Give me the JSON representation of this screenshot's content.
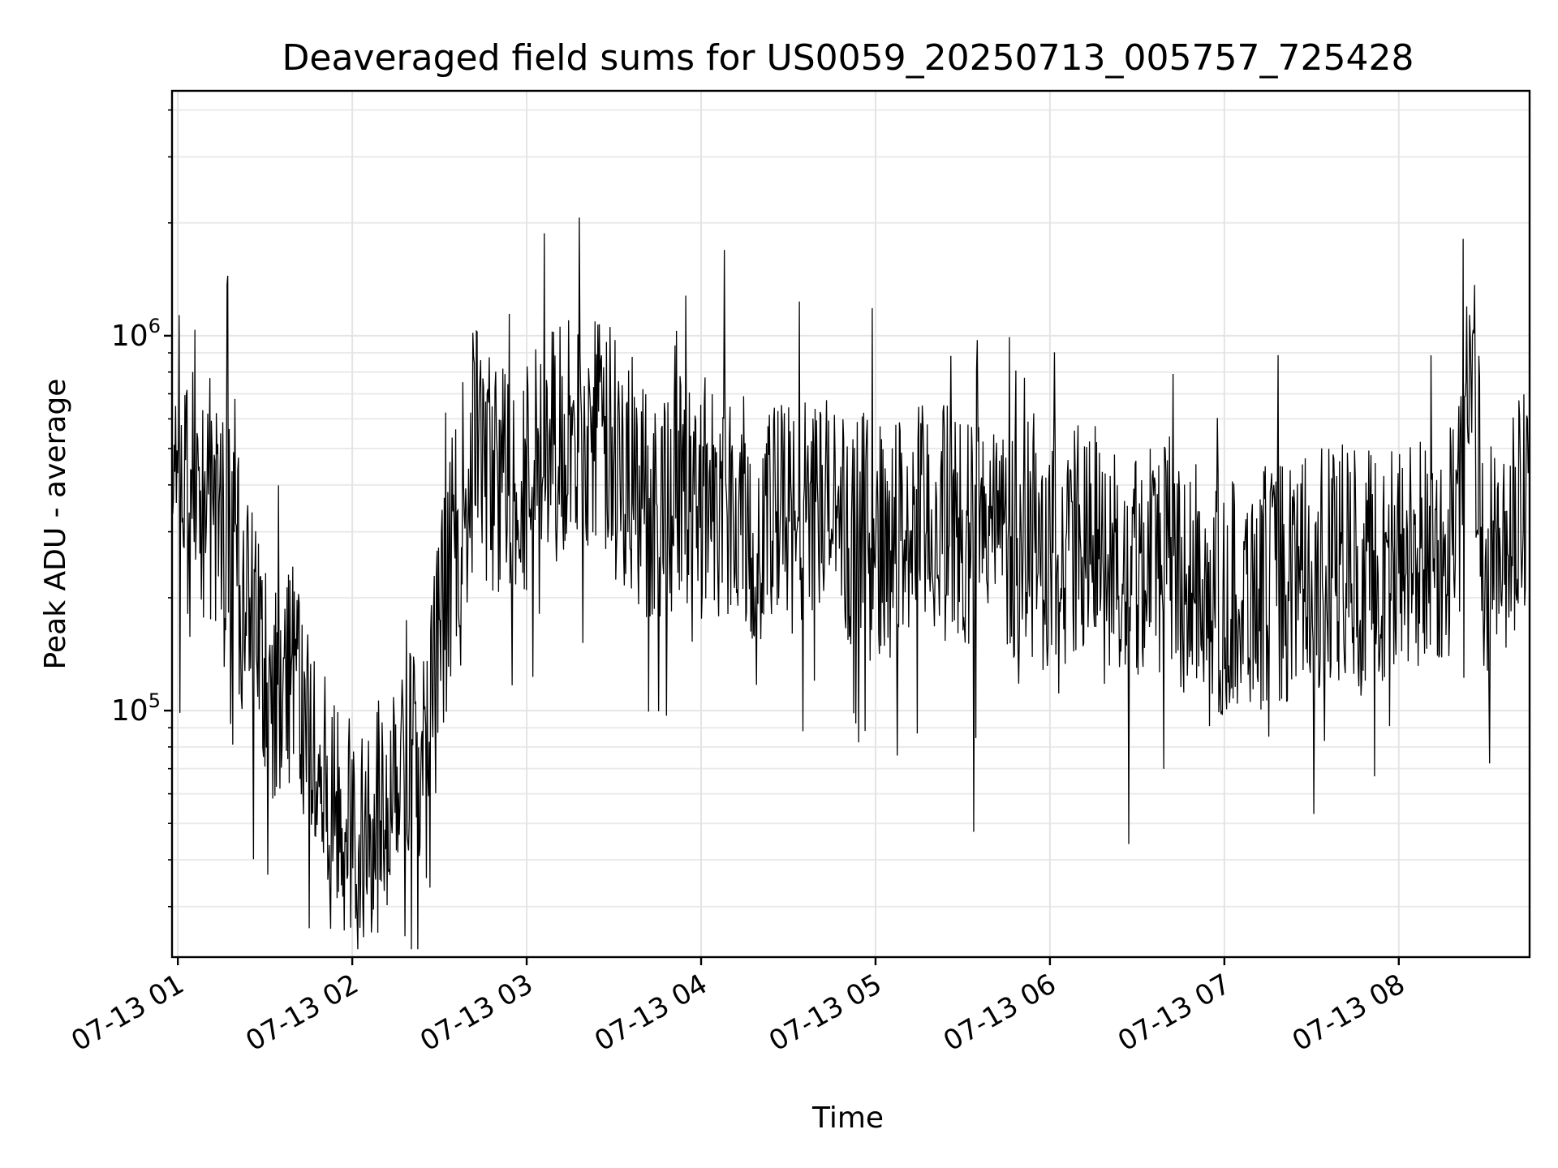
{
  "chart_data": {
    "type": "line",
    "title": "Deaveraged field sums for US0059_20250713_005757_725428",
    "xlabel": "Time",
    "ylabel": "Peak ADU - average",
    "yscale": "log",
    "ylim": [
      22000,
      4500000
    ],
    "xlim": [
      "2025-07-13T00:58:00",
      "2025-07-13T08:45:00"
    ],
    "x_ticks": [
      "07-13 01",
      "07-13 02",
      "07-13 03",
      "07-13 04",
      "07-13 05",
      "07-13 06",
      "07-13 07",
      "07-13 08"
    ],
    "x_tick_times": [
      "2025-07-13T01:00:00",
      "2025-07-13T02:00:00",
      "2025-07-13T03:00:00",
      "2025-07-13T04:00:00",
      "2025-07-13T05:00:00",
      "2025-07-13T06:00:00",
      "2025-07-13T07:00:00",
      "2025-07-13T08:00:00"
    ],
    "y_ticks": [
      {
        "base": "10",
        "exp": "5",
        "value": 100000
      },
      {
        "base": "10",
        "exp": "6",
        "value": 1000000
      }
    ],
    "grid": true,
    "line_color": "#000000",
    "series": [
      {
        "x": [
          "2025-07-13T00:58:00",
          "2025-07-13T01:00:00",
          "2025-07-13T01:03:00",
          "2025-07-13T01:06:00",
          "2025-07-13T01:10:00",
          "2025-07-13T01:15:00",
          "2025-07-13T01:20:00",
          "2025-07-13T01:25:00",
          "2025-07-13T01:30:00",
          "2025-07-13T01:35:00",
          "2025-07-13T01:40:00",
          "2025-07-13T01:45:00",
          "2025-07-13T01:50:00",
          "2025-07-13T01:55:00",
          "2025-07-13T02:00:00",
          "2025-07-13T02:05:00",
          "2025-07-13T02:10:00",
          "2025-07-13T02:15:00",
          "2025-07-13T02:20:00",
          "2025-07-13T02:25:00",
          "2025-07-13T02:30:00",
          "2025-07-13T02:35:00",
          "2025-07-13T02:40:00",
          "2025-07-13T02:43:00",
          "2025-07-13T02:45:00",
          "2025-07-13T02:50:00",
          "2025-07-13T02:55:00",
          "2025-07-13T03:00:00",
          "2025-07-13T03:10:00",
          "2025-07-13T03:20:00",
          "2025-07-13T03:30:00",
          "2025-07-13T03:40:00",
          "2025-07-13T03:50:00",
          "2025-07-13T04:00:00",
          "2025-07-13T04:10:00",
          "2025-07-13T04:20:00",
          "2025-07-13T04:30:00",
          "2025-07-13T04:40:00",
          "2025-07-13T04:50:00",
          "2025-07-13T05:00:00",
          "2025-07-13T05:10:00",
          "2025-07-13T05:20:00",
          "2025-07-13T05:30:00",
          "2025-07-13T05:40:00",
          "2025-07-13T05:50:00",
          "2025-07-13T06:00:00",
          "2025-07-13T06:10:00",
          "2025-07-13T06:20:00",
          "2025-07-13T06:30:00",
          "2025-07-13T06:40:00",
          "2025-07-13T06:50:00",
          "2025-07-13T07:00:00",
          "2025-07-13T07:10:00",
          "2025-07-13T07:20:00",
          "2025-07-13T07:30:00",
          "2025-07-13T07:40:00",
          "2025-07-13T07:50:00",
          "2025-07-13T08:00:00",
          "2025-07-13T08:10:00",
          "2025-07-13T08:20:00",
          "2025-07-13T08:25:00",
          "2025-07-13T08:30:00",
          "2025-07-13T08:35:00",
          "2025-07-13T08:40:00",
          "2025-07-13T08:45:00"
        ],
        "y": [
          400000,
          600000,
          350000,
          500000,
          300000,
          350000,
          250000,
          170000,
          130000,
          110000,
          150000,
          80000,
          60000,
          50000,
          45000,
          55000,
          50000,
          80000,
          90000,
          70000,
          150000,
          300000,
          400000,
          600000,
          450000,
          420000,
          430000,
          440000,
          520000,
          560000,
          500000,
          360000,
          380000,
          390000,
          370000,
          300000,
          330000,
          350000,
          310000,
          280000,
          300000,
          320000,
          310000,
          300000,
          290000,
          260000,
          280000,
          250000,
          270000,
          260000,
          220000,
          200000,
          210000,
          220000,
          230000,
          250000,
          240000,
          250000,
          260000,
          300000,
          900000,
          250000,
          230000,
          300000,
          400000
        ]
      }
    ]
  }
}
